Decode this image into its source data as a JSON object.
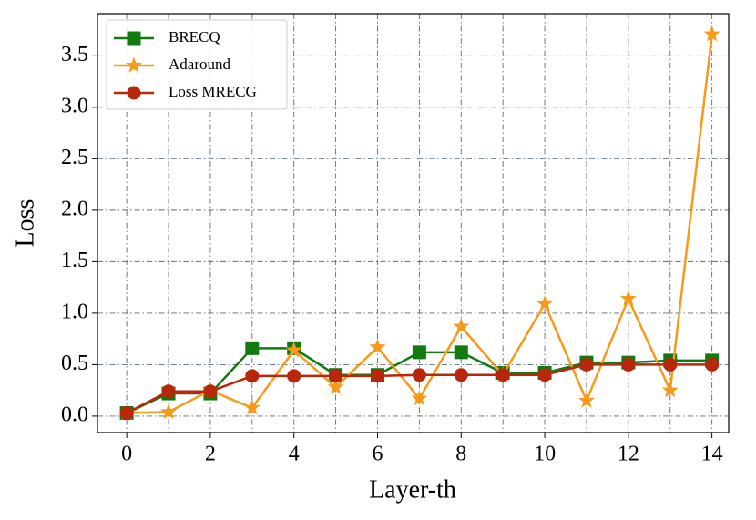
{
  "chart_data": {
    "type": "line",
    "xlabel": "Layer-th",
    "ylabel": "Loss",
    "x": [
      0,
      1,
      2,
      3,
      4,
      5,
      6,
      7,
      8,
      9,
      10,
      11,
      12,
      13,
      14
    ],
    "series": [
      {
        "name": "BRECQ",
        "color": "#117a11",
        "marker": "square",
        "values": [
          0.03,
          0.22,
          0.22,
          0.66,
          0.66,
          0.4,
          0.4,
          0.62,
          0.62,
          0.42,
          0.42,
          0.52,
          0.52,
          0.54,
          0.54
        ]
      },
      {
        "name": "Adaround",
        "color": "#f59a1b",
        "marker": "star",
        "values": [
          0.03,
          0.04,
          0.25,
          0.08,
          0.64,
          0.28,
          0.67,
          0.17,
          0.87,
          0.4,
          1.09,
          0.15,
          1.14,
          0.25,
          3.71
        ]
      },
      {
        "name": "Loss MRECG",
        "color": "#b8260c",
        "marker": "circle",
        "values": [
          0.03,
          0.24,
          0.24,
          0.39,
          0.39,
          0.39,
          0.39,
          0.4,
          0.4,
          0.4,
          0.4,
          0.5,
          0.5,
          0.5,
          0.5
        ]
      }
    ],
    "xlim": [
      -0.7,
      14.4
    ],
    "xticks": [
      0,
      2,
      4,
      6,
      8,
      10,
      12,
      14
    ],
    "ylim": [
      -0.16,
      3.91
    ],
    "yticks": [
      {
        "value": 0,
        "label": "0.0"
      },
      0.5,
      {
        "value": 1,
        "label": "1.0"
      },
      1.5,
      {
        "value": 2,
        "label": "2.0"
      },
      2.5,
      {
        "value": 3,
        "label": "3.0"
      },
      3.5
    ],
    "grid": true,
    "legend": "upper left"
  }
}
